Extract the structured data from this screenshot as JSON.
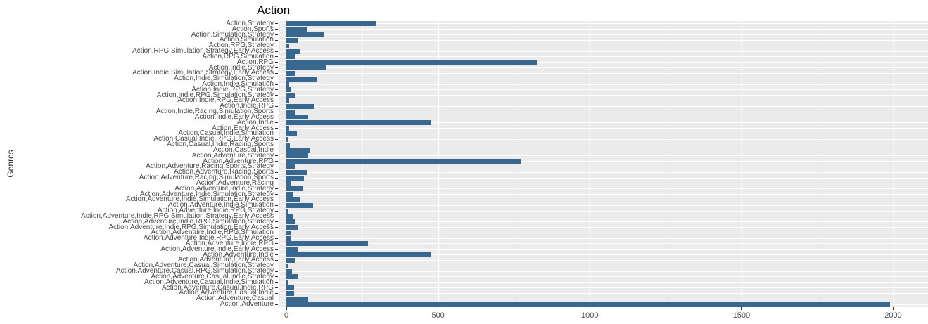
{
  "chart_data": {
    "type": "bar",
    "orientation": "horizontal",
    "title": "Action",
    "xlabel": "",
    "ylabel": "Genres",
    "x_ticks": [
      0,
      500,
      1000,
      1500,
      2000
    ],
    "xlim": [
      0,
      2115
    ],
    "grid": true,
    "legend_position": "none",
    "panel_bg": "#ebebeb",
    "bar_color": "#38678f",
    "categories_order": "top-to-bottom",
    "categories": [
      "Action,Strategy",
      "Action,Sports",
      "Action,Simulation,Strategy",
      "Action,Simulation",
      "Action,RPG,Strategy",
      "Action,RPG,Simulation,Strategy,Early Access",
      "Action,RPG,Simulation",
      "Action,RPG",
      "Action,Indie,Strategy",
      "Action,Indie,Simulation,Strategy,Early Access",
      "Action,Indie,Simulation,Strategy",
      "Action,Indie,Simulation",
      "Action,Indie,RPG,Strategy",
      "Action,Indie,RPG,Simulation,Strategy",
      "Action,Indie,RPG,Early Access",
      "Action,Indie,RPG",
      "Action,Indie,Racing,Simulation,Sports",
      "Action,Indie,Early Access",
      "Action,Indie",
      "Action,Early Access",
      "Action,Casual,Indie,Simulation",
      "Action,Casual,Indie,RPG,Early Access",
      "Action,Casual,Indie,Racing,Sports",
      "Action,Casual,Indie",
      "Action,Adventure,Strategy",
      "Action,Adventure,RPG",
      "Action,Adventure,Racing,Sports,Strategy",
      "Action,Adventure,Racing,Sports",
      "Action,Adventure,Racing,Simulation,Sports",
      "Action,Adventure,Racing",
      "Action,Adventure,Indie,Strategy",
      "Action,Adventure,Indie,Simulation,Strategy",
      "Action,Adventure,Indie,Simulation,Early Access",
      "Action,Adventure,Indie,Simulation",
      "Action,Adventure,Indie,RPG,Strategy",
      "Action,Adventure,Indie,RPG,Simulation,Strategy,Early Access",
      "Action,Adventure,Indie,RPG,Simulation,Strategy",
      "Action,Adventure,Indie,RPG,Simulation,Early Access",
      "Action,Adventure,Indie,RPG,Simulation",
      "Action,Adventure,Indie,RPG,Early Access",
      "Action,Adventure,Indie,RPG",
      "Action,Adventure,Indie,Early Access",
      "Action,Adventure,Indie",
      "Action,Adventure,Early Access",
      "Action,Adventure,Casual,Simulation,Strategy",
      "Action,Adventure,Casual,RPG,Simulation,Strategy",
      "Action,Adventure,Casual,Indie,Strategy",
      "Action,Adventure,Casual,Indie,Simulation",
      "Action,Adventure,Casual,Indie,RPG",
      "Action,Adventure,Casual,Indie",
      "Action,Adventure,Casual",
      "Action,Adventure"
    ],
    "values": [
      297,
      67,
      123,
      38,
      9,
      46,
      28,
      826,
      132,
      28,
      102,
      9,
      13,
      29,
      9,
      93,
      29,
      73,
      478,
      10,
      35,
      5,
      11,
      77,
      71,
      772,
      28,
      67,
      57,
      16,
      53,
      23,
      45,
      88,
      6,
      22,
      30,
      38,
      14,
      16,
      270,
      38,
      476,
      28,
      6,
      18,
      38,
      7,
      26,
      26,
      73,
      1990
    ]
  }
}
